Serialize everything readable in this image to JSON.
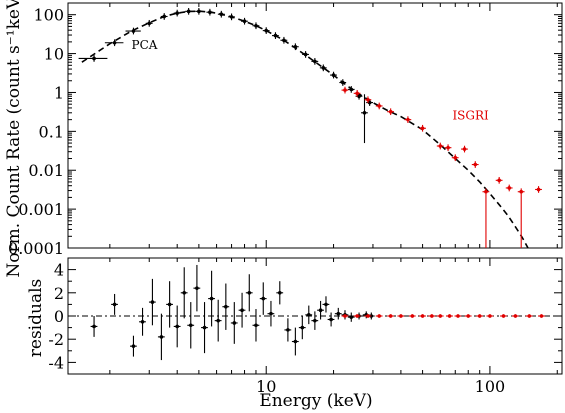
{
  "chart_data": [
    {
      "type": "scatter",
      "panel": "spectrum",
      "xlabel": "Energy (keV)",
      "ylabel": "Norm. Count Rate (count s⁻¹keV⁻¹)",
      "xscale": "log",
      "yscale": "log",
      "xlim": [
        1.3,
        210
      ],
      "ylim": [
        0.0001,
        200
      ],
      "ytick_values": [
        100,
        10,
        1,
        0.1,
        0.01,
        0.001,
        0.0001
      ],
      "ytick_labels": [
        "100",
        "10",
        "1",
        "0.1",
        "0.01",
        "0.001",
        "0.0001"
      ],
      "annotations": [
        {
          "text": "PCA",
          "x": 2.5,
          "y": 13
        },
        {
          "text": "ISGRI",
          "x": 68,
          "y": 0.2
        }
      ],
      "colors": {
        "PCA": "#000000",
        "ISGRI": "#e00000",
        "model": "#000000"
      },
      "series": [
        {
          "label_on_chart": "PCA",
          "points": [
            {
              "x": 1.7,
              "y": 7.5,
              "xerr": 0.25
            },
            {
              "x": 2.1,
              "y": 19,
              "xerr": 0.2
            },
            {
              "x": 2.55,
              "y": 38,
              "xerr": 0.2
            },
            {
              "x": 3.0,
              "y": 60
            },
            {
              "x": 3.5,
              "y": 90
            },
            {
              "x": 4.0,
              "y": 110
            },
            {
              "x": 4.5,
              "y": 122
            },
            {
              "x": 5.0,
              "y": 122
            },
            {
              "x": 5.6,
              "y": 116
            },
            {
              "x": 6.3,
              "y": 103
            },
            {
              "x": 7.0,
              "y": 88
            },
            {
              "x": 8.0,
              "y": 68
            },
            {
              "x": 9.0,
              "y": 52
            },
            {
              "x": 10.0,
              "y": 39
            },
            {
              "x": 11.0,
              "y": 29
            },
            {
              "x": 12.0,
              "y": 22
            },
            {
              "x": 13.5,
              "y": 15
            },
            {
              "x": 15.0,
              "y": 9.5
            },
            {
              "x": 16.5,
              "y": 6.3
            },
            {
              "x": 18.0,
              "y": 4.3
            },
            {
              "x": 20.0,
              "y": 2.8
            },
            {
              "x": 22.0,
              "y": 1.8
            },
            {
              "x": 24.0,
              "y": 1.2
            },
            {
              "x": 26.0,
              "y": 0.8
            },
            {
              "x": 27.5,
              "y": 0.3,
              "yerr_low": 0.25,
              "yerr_high": 0.6
            },
            {
              "x": 29.0,
              "y": 0.55
            }
          ]
        },
        {
          "label_on_chart": "ISGRI",
          "points": [
            {
              "x": 22.5,
              "y": 1.15
            },
            {
              "x": 25.5,
              "y": 0.95
            },
            {
              "x": 28.5,
              "y": 0.65
            },
            {
              "x": 32.0,
              "y": 0.45
            },
            {
              "x": 36.0,
              "y": 0.32
            },
            {
              "x": 43.0,
              "y": 0.2
            },
            {
              "x": 50.0,
              "y": 0.12
            },
            {
              "x": 60.0,
              "y": 0.042
            },
            {
              "x": 65.0,
              "y": 0.038
            },
            {
              "x": 70.0,
              "y": 0.021
            },
            {
              "x": 77.0,
              "y": 0.035
            },
            {
              "x": 86.0,
              "y": 0.014
            },
            {
              "x": 96.0,
              "y": 0.0028,
              "yerr_low": 0.0027
            },
            {
              "x": 110.0,
              "y": 0.0055
            },
            {
              "x": 122.0,
              "y": 0.0035
            },
            {
              "x": 138.0,
              "y": 0.0028,
              "yerr_low": 0.0027
            },
            {
              "x": 165.0,
              "y": 0.0032
            }
          ]
        },
        {
          "label_on_chart": "",
          "style": "dashed-line",
          "points": [
            {
              "x": 1.5,
              "y": 6
            },
            {
              "x": 2,
              "y": 18
            },
            {
              "x": 2.5,
              "y": 38
            },
            {
              "x": 3,
              "y": 62
            },
            {
              "x": 3.5,
              "y": 90
            },
            {
              "x": 4,
              "y": 110
            },
            {
              "x": 4.5,
              "y": 121
            },
            {
              "x": 5,
              "y": 123
            },
            {
              "x": 5.5,
              "y": 118
            },
            {
              "x": 6,
              "y": 110
            },
            {
              "x": 7,
              "y": 88
            },
            {
              "x": 8,
              "y": 68
            },
            {
              "x": 9,
              "y": 52
            },
            {
              "x": 10,
              "y": 39
            },
            {
              "x": 12,
              "y": 22
            },
            {
              "x": 14,
              "y": 12
            },
            {
              "x": 16,
              "y": 7
            },
            {
              "x": 18,
              "y": 4.3
            },
            {
              "x": 20,
              "y": 2.8
            },
            {
              "x": 22,
              "y": 1.8
            },
            {
              "x": 25,
              "y": 1.05
            },
            {
              "x": 30,
              "y": 0.55
            },
            {
              "x": 35,
              "y": 0.34
            },
            {
              "x": 40,
              "y": 0.24
            },
            {
              "x": 50,
              "y": 0.11
            },
            {
              "x": 60,
              "y": 0.045
            },
            {
              "x": 70,
              "y": 0.02
            },
            {
              "x": 80,
              "y": 0.01
            },
            {
              "x": 90,
              "y": 0.005
            },
            {
              "x": 100,
              "y": 0.0025
            },
            {
              "x": 110,
              "y": 0.0013
            },
            {
              "x": 120,
              "y": 0.0007
            },
            {
              "x": 130,
              "y": 0.00035
            },
            {
              "x": 140,
              "y": 0.00018
            },
            {
              "x": 148,
              "y": 0.0001
            }
          ]
        }
      ]
    },
    {
      "type": "scatter",
      "panel": "residuals",
      "xlabel": "Energy (keV)",
      "ylabel": "residuals",
      "xscale": "log",
      "xlim": [
        1.3,
        210
      ],
      "ylim": [
        -5,
        5
      ],
      "xtick_values": [
        10,
        100
      ],
      "xtick_labels": [
        "10",
        "100"
      ],
      "ytick_values": [
        4,
        2,
        0,
        -2,
        -4
      ],
      "ytick_labels": [
        "4",
        "2",
        "0",
        "-2",
        "-4"
      ],
      "series": [
        {
          "label_on_chart": "PCA",
          "points": [
            {
              "x": 1.7,
              "y": -0.9,
              "yerr": 0.9
            },
            {
              "x": 2.1,
              "y": 1.0,
              "yerr": 0.9
            },
            {
              "x": 2.55,
              "y": -2.6,
              "yerr": 0.9
            },
            {
              "x": 2.8,
              "y": -0.5,
              "yerr": 1.2
            },
            {
              "x": 3.1,
              "y": 1.2,
              "yerr": 2.0
            },
            {
              "x": 3.4,
              "y": -1.8,
              "yerr": 2.0
            },
            {
              "x": 3.7,
              "y": 1.0,
              "yerr": 2.0
            },
            {
              "x": 4.0,
              "y": -0.9,
              "yerr": 1.8
            },
            {
              "x": 4.3,
              "y": 2.0,
              "yerr": 2.2
            },
            {
              "x": 4.6,
              "y": -0.8,
              "yerr": 2.0
            },
            {
              "x": 4.9,
              "y": 2.4,
              "yerr": 2.0
            },
            {
              "x": 5.3,
              "y": -1.0,
              "yerr": 2.2
            },
            {
              "x": 5.7,
              "y": 1.5,
              "yerr": 2.4
            },
            {
              "x": 6.1,
              "y": -0.4,
              "yerr": 1.8
            },
            {
              "x": 6.6,
              "y": 0.8,
              "yerr": 2.0
            },
            {
              "x": 7.2,
              "y": -0.6,
              "yerr": 1.8
            },
            {
              "x": 7.8,
              "y": 0.5,
              "yerr": 1.5
            },
            {
              "x": 8.4,
              "y": 2.0,
              "yerr": 1.6
            },
            {
              "x": 9.0,
              "y": -0.8,
              "yerr": 1.4
            },
            {
              "x": 9.7,
              "y": 1.5,
              "yerr": 1.4
            },
            {
              "x": 10.5,
              "y": 0.2,
              "yerr": 1.1
            },
            {
              "x": 11.5,
              "y": 2.0,
              "yerr": 1.0
            },
            {
              "x": 12.5,
              "y": -1.2,
              "yerr": 1.0
            },
            {
              "x": 13.5,
              "y": -2.2,
              "yerr": 1.2
            },
            {
              "x": 14.5,
              "y": -1.0,
              "yerr": 1.0
            },
            {
              "x": 15.5,
              "y": 0.1,
              "yerr": 0.8
            },
            {
              "x": 16.5,
              "y": -0.4,
              "yerr": 0.8
            },
            {
              "x": 17.5,
              "y": 0.5,
              "yerr": 0.8
            },
            {
              "x": 18.5,
              "y": 1.0,
              "yerr": 0.7
            },
            {
              "x": 19.5,
              "y": -0.3,
              "yerr": 0.6
            },
            {
              "x": 21.0,
              "y": 0.2,
              "yerr": 0.5
            },
            {
              "x": 22.5,
              "y": 0.1,
              "yerr": 0.4
            },
            {
              "x": 24.0,
              "y": -0.1,
              "yerr": 0.4
            },
            {
              "x": 26.0,
              "y": 0.0,
              "yerr": 0.3
            },
            {
              "x": 28.0,
              "y": 0.1,
              "yerr": 0.3
            },
            {
              "x": 29.5,
              "y": 0.0,
              "yerr": 0.3
            }
          ]
        },
        {
          "label_on_chart": "ISGRI",
          "points": [
            {
              "x": 22.5,
              "y": 0.0
            },
            {
              "x": 25.5,
              "y": 0.0
            },
            {
              "x": 28.5,
              "y": 0.0
            },
            {
              "x": 32.0,
              "y": 0.0
            },
            {
              "x": 36.0,
              "y": 0.0
            },
            {
              "x": 40.0,
              "y": 0.0
            },
            {
              "x": 45.0,
              "y": 0.0
            },
            {
              "x": 50.0,
              "y": 0.0
            },
            {
              "x": 55.0,
              "y": 0.0
            },
            {
              "x": 60.0,
              "y": 0.0
            },
            {
              "x": 66.0,
              "y": 0.0
            },
            {
              "x": 72.0,
              "y": 0.0
            },
            {
              "x": 80.0,
              "y": 0.0
            },
            {
              "x": 90.0,
              "y": 0.0
            },
            {
              "x": 100.0,
              "y": 0.0
            },
            {
              "x": 115.0,
              "y": 0.0
            },
            {
              "x": 130.0,
              "y": 0.0
            },
            {
              "x": 150.0,
              "y": 0.0
            },
            {
              "x": 170.0,
              "y": 0.0
            }
          ]
        }
      ]
    }
  ]
}
